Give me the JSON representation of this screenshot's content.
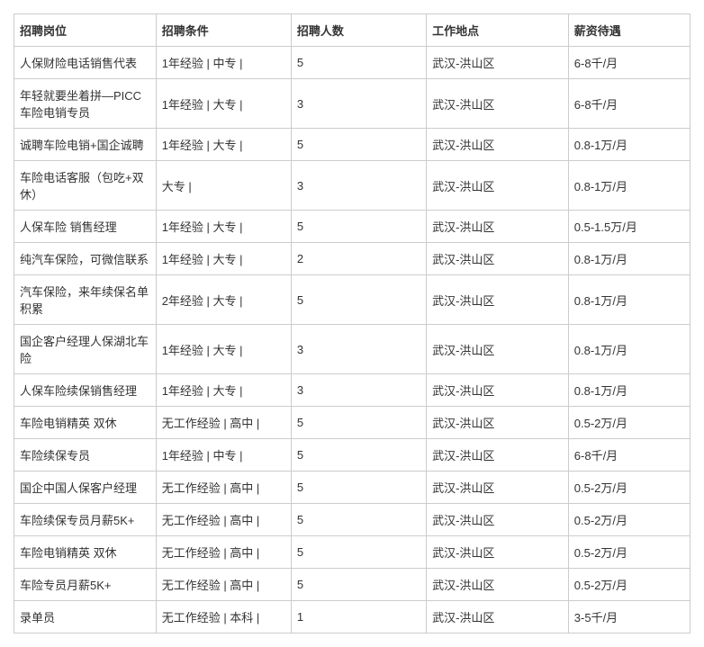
{
  "table": {
    "columns": [
      "招聘岗位",
      "招聘条件",
      "招聘人数",
      "工作地点",
      "薪资待遇"
    ],
    "rows": [
      [
        "人保财险电话销售代表",
        "1年经验 | 中专 |",
        "5",
        "武汉-洪山区",
        "6-8千/月"
      ],
      [
        "年轻就要坐着拼—PICC车险电销专员",
        "1年经验 | 大专 |",
        "3",
        "武汉-洪山区",
        "6-8千/月"
      ],
      [
        "诚聘车险电销+国企诚聘",
        "1年经验 | 大专 |",
        "5",
        "武汉-洪山区",
        "0.8-1万/月"
      ],
      [
        "车险电话客服（包吃+双休）",
        "大专 |",
        "3",
        "武汉-洪山区",
        "0.8-1万/月"
      ],
      [
        "人保车险 销售经理",
        "1年经验 | 大专 |",
        "5",
        "武汉-洪山区",
        "0.5-1.5万/月"
      ],
      [
        "纯汽车保险，可微信联系",
        "1年经验 | 大专 |",
        "2",
        "武汉-洪山区",
        "0.8-1万/月"
      ],
      [
        "汽车保险，来年续保名单积累",
        "2年经验 | 大专 |",
        "5",
        "武汉-洪山区",
        "0.8-1万/月"
      ],
      [
        "国企客户经理人保湖北车险",
        "1年经验 | 大专 |",
        "3",
        "武汉-洪山区",
        "0.8-1万/月"
      ],
      [
        "人保车险续保销售经理",
        "1年经验 | 大专 |",
        "3",
        "武汉-洪山区",
        "0.8-1万/月"
      ],
      [
        "车险电销精英 双休",
        "无工作经验 | 高中 |",
        "5",
        "武汉-洪山区",
        "0.5-2万/月"
      ],
      [
        "车险续保专员",
        "1年经验 | 中专 |",
        "5",
        "武汉-洪山区",
        "6-8千/月"
      ],
      [
        "国企中国人保客户经理",
        "无工作经验 | 高中 |",
        "5",
        "武汉-洪山区",
        "0.5-2万/月"
      ],
      [
        "车险续保专员月薪5K+",
        "无工作经验 | 高中 |",
        "5",
        "武汉-洪山区",
        "0.5-2万/月"
      ],
      [
        "车险电销精英 双休",
        "无工作经验 | 高中 |",
        "5",
        "武汉-洪山区",
        "0.5-2万/月"
      ],
      [
        "车险专员月薪5K+",
        "无工作经验 | 高中 |",
        "5",
        "武汉-洪山区",
        "0.5-2万/月"
      ],
      [
        "录单员",
        "无工作经验 | 本科 |",
        "1",
        "武汉-洪山区",
        "3-5千/月"
      ]
    ],
    "column_widths": [
      "21%",
      "20%",
      "20%",
      "21%",
      "18%"
    ],
    "border_color": "#cccccc",
    "text_color": "#333333",
    "font_size": 13,
    "background_color": "#ffffff"
  }
}
